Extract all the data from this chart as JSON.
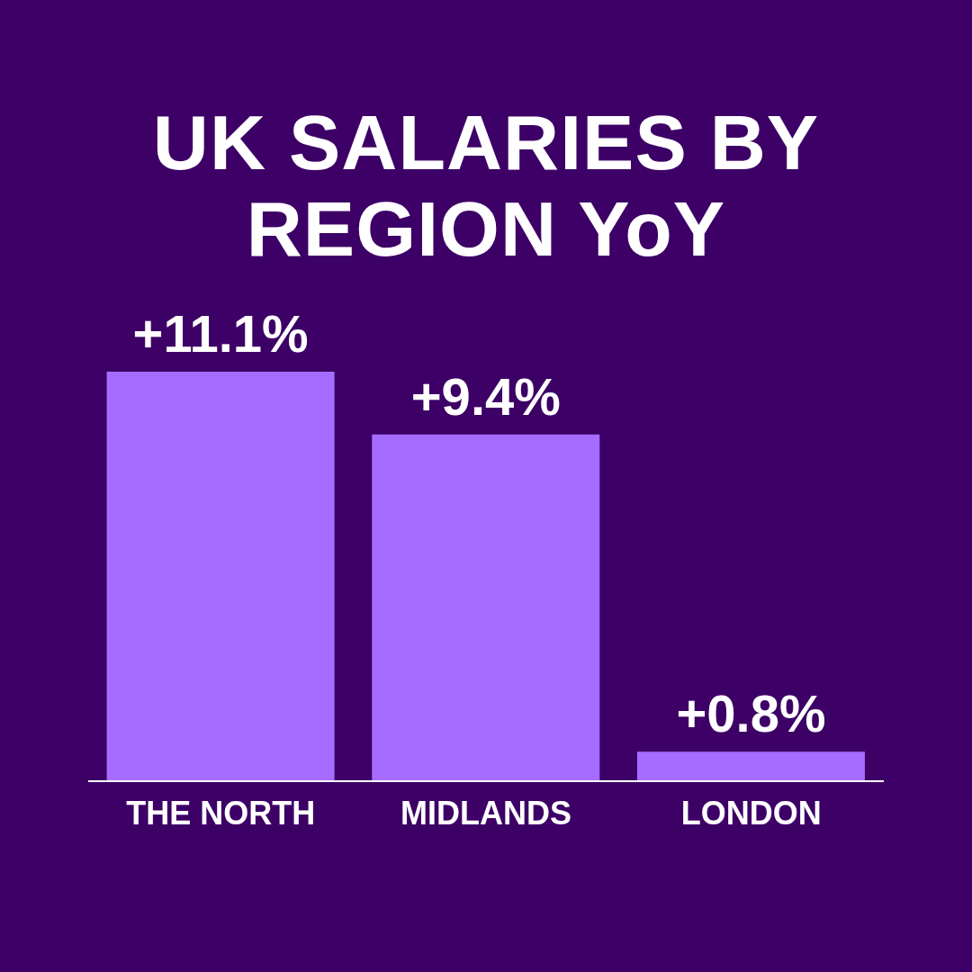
{
  "chart_data": {
    "type": "bar",
    "title": "UK SALARIES BY REGION YoY",
    "categories": [
      "THE NORTH",
      "MIDLANDS",
      "LONDON"
    ],
    "values": [
      11.1,
      9.4,
      0.8
    ],
    "value_labels": [
      "+11.1%",
      "+9.4%",
      "+0.8%"
    ],
    "color": "#a66cff",
    "grid": false,
    "legend": false
  }
}
